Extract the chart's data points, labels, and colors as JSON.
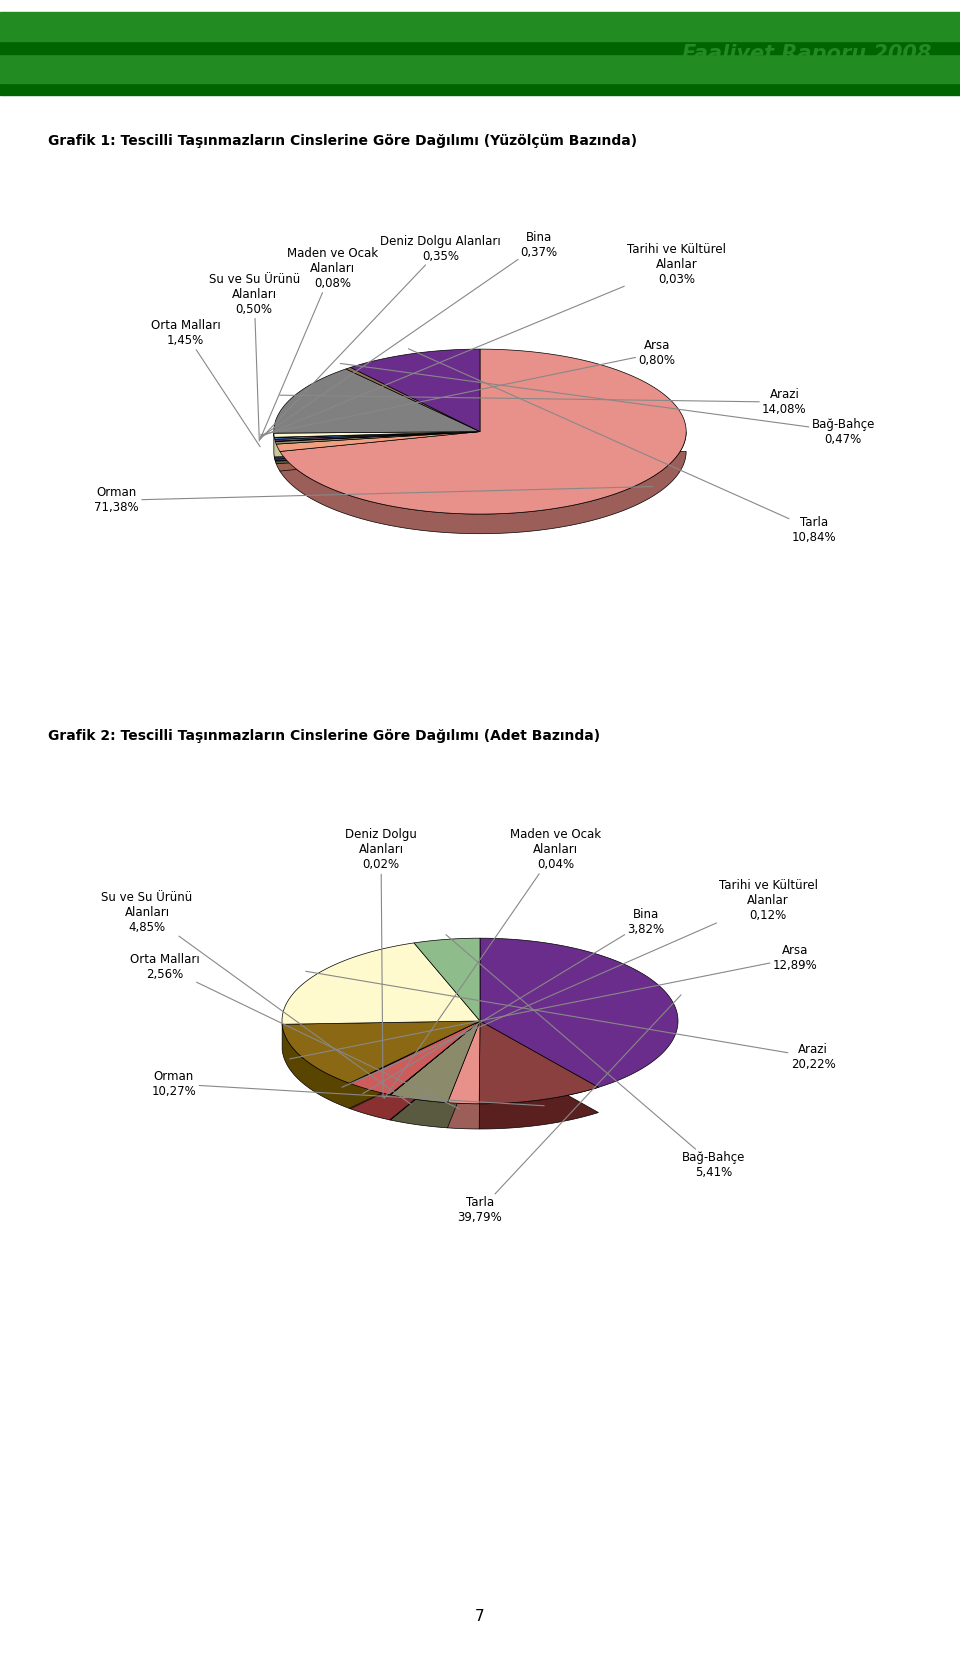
{
  "header_text": "Faaliyet Raporu 2008",
  "bg_color": "#ffffff",
  "chart1_title": "Grafik 1: Tescilli Taşınmazların Cinslerine Göre Dağılımı (Yüzölçüm Bazında)",
  "chart1_slices": [
    {
      "label": "Orman",
      "pct": "71,38%",
      "value": 71.38,
      "color": "#E8908A",
      "dark": "#9B5E59"
    },
    {
      "label": "Orta Malları",
      "pct": "1,45%",
      "value": 1.45,
      "color": "#F0A080",
      "dark": "#A06050"
    },
    {
      "label": "Su ve Su Ürünü\nAlanları",
      "pct": "0,50%",
      "value": 0.5,
      "color": "#8B8B6B",
      "dark": "#5A5A40"
    },
    {
      "label": "Maden ve Ocak\nAlanları",
      "pct": "0,08%",
      "value": 0.08,
      "color": "#4472C4",
      "dark": "#2A4A8A"
    },
    {
      "label": "Deniz Dolgu Alanları",
      "pct": "0,35%",
      "value": 0.35,
      "color": "#7B4F8B",
      "dark": "#4B2F5B"
    },
    {
      "label": "Bina",
      "pct": "0,37%",
      "value": 0.37,
      "color": "#4472C4",
      "dark": "#2A4A8A"
    },
    {
      "label": "Tarihi ve Kültürel\nAlanlar",
      "pct": "0,03%",
      "value": 0.03,
      "color": "#808080",
      "dark": "#404040"
    },
    {
      "label": "Arsa",
      "pct": "0,80%",
      "value": 0.8,
      "color": "#FFFACD",
      "dark": "#C8C89A"
    },
    {
      "label": "Arazi",
      "pct": "14,08%",
      "value": 14.08,
      "color": "#808080",
      "dark": "#404040"
    },
    {
      "label": "Bağ-Bahçe",
      "pct": "0,47%",
      "value": 0.47,
      "color": "#8B7355",
      "dark": "#5A4A30"
    },
    {
      "label": "Tarla",
      "pct": "10,84%",
      "value": 10.84,
      "color": "#6B2D8B",
      "dark": "#3B0D5B"
    }
  ],
  "chart2_slices": [
    {
      "label": "Tarla",
      "pct": "39,79%",
      "value": 39.79,
      "color": "#6B2D8B",
      "dark": "#3B0D5B"
    },
    {
      "label": "Orman",
      "pct": "10,27%",
      "value": 10.27,
      "color": "#8B4040",
      "dark": "#5A2020"
    },
    {
      "label": "Orta Malları",
      "pct": "2,56%",
      "value": 2.56,
      "color": "#E8908A",
      "dark": "#9B5E59"
    },
    {
      "label": "Su ve Su Ürünü\nAlanları",
      "pct": "4,85%",
      "value": 4.85,
      "color": "#8B8B6B",
      "dark": "#5A5A40"
    },
    {
      "label": "Deniz Dolgu\nAlanları",
      "pct": "0,02%",
      "value": 0.02,
      "color": "#4472C4",
      "dark": "#2A4A8A"
    },
    {
      "label": "Maden ve Ocak\nAlanları",
      "pct": "0,04%",
      "value": 0.04,
      "color": "#7B4F8B",
      "dark": "#4B2F5B"
    },
    {
      "label": "Bina",
      "pct": "3,82%",
      "value": 3.82,
      "color": "#CD5C5C",
      "dark": "#8B3030"
    },
    {
      "label": "Tarihi ve Kültürel\nAlanlar",
      "pct": "0,12%",
      "value": 0.12,
      "color": "#C0C0C0",
      "dark": "#808080"
    },
    {
      "label": "Arsa",
      "pct": "12,89%",
      "value": 12.89,
      "color": "#8B6914",
      "dark": "#5A4500"
    },
    {
      "label": "Arazi",
      "pct": "20,22%",
      "value": 20.22,
      "color": "#FFFACD",
      "dark": "#C8C89A"
    },
    {
      "label": "Bağ-Bahçe",
      "pct": "5,41%",
      "value": 5.41,
      "color": "#8FBC8B",
      "dark": "#4A8A4A"
    }
  ],
  "chart2_title": "Grafik 2: Tescilli Taşınmazların Cinslerine Göre Dağılımı (Adet Bazında)"
}
